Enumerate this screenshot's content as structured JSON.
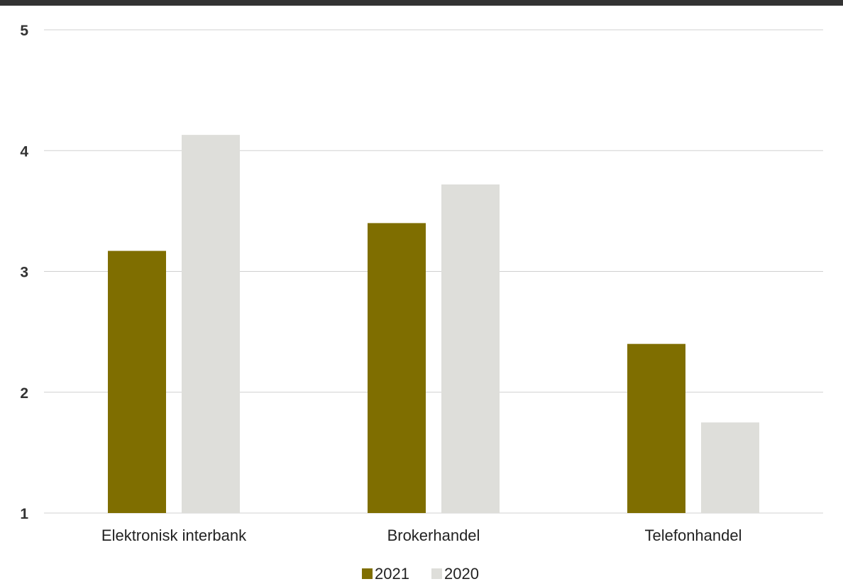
{
  "colors": {
    "top_bar": "#333333",
    "series_2021": "#7f6e00",
    "series_2020": "#dededa"
  },
  "chart_data": {
    "type": "bar",
    "categories": [
      "Elektronisk interbank",
      "Brokerhandel",
      "Telefonhandel"
    ],
    "series": [
      {
        "name": "2021",
        "values": [
          3.17,
          3.4,
          2.4
        ]
      },
      {
        "name": "2020",
        "values": [
          4.13,
          3.72,
          1.75
        ]
      }
    ],
    "y_ticks": [
      "1",
      "2",
      "3",
      "4",
      "5"
    ],
    "ylim": [
      1,
      5
    ],
    "grid": true,
    "legend_position": "bottom-center",
    "title": "",
    "xlabel": "",
    "ylabel": ""
  }
}
